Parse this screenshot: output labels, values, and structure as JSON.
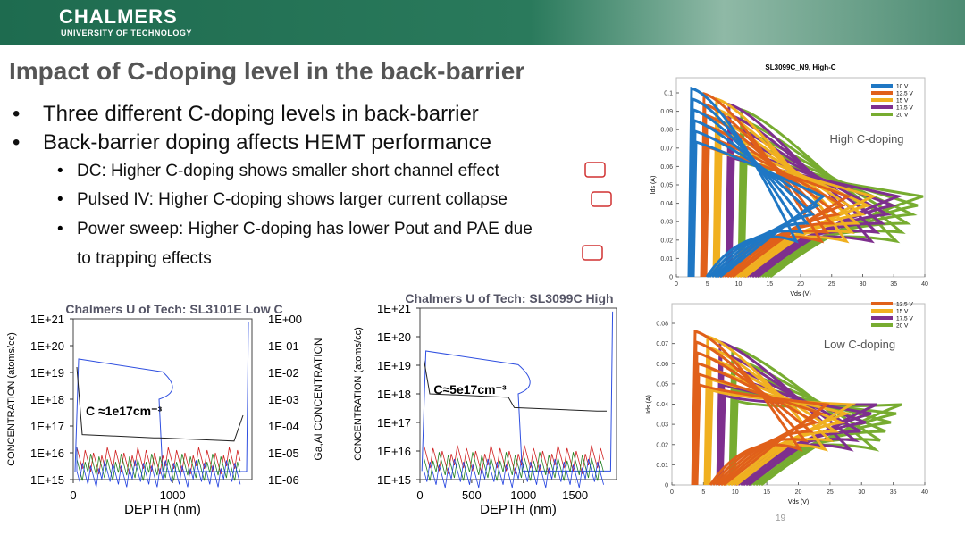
{
  "header": {
    "brand": "CHALMERS",
    "subbrand": "UNIVERSITY OF TECHNOLOGY"
  },
  "title": "Impact of C-doping level in the back-barrier",
  "bullets": [
    "Three different C-doping levels in back-barrier",
    "Back-barrier doping affects HEMT performance"
  ],
  "subbullets": [
    "DC: Higher C-doping shows smaller short channel effect",
    "Pulsed IV: Higher C-doping  shows larger current collapse",
    "Power sweep: Higher C-doping has lower Pout and PAE due",
    "to trapping effects"
  ],
  "iv_charts": [
    {
      "title": "SL3099C_N9, High-C",
      "note": "High C-doping",
      "xlabel": "Vds (V)",
      "ylabel": "Ids (A)",
      "xticks": [
        0,
        5,
        10,
        15,
        20,
        25,
        30,
        35,
        40
      ],
      "yticks": [
        0,
        0.01,
        0.02,
        0.03,
        0.04,
        0.05,
        0.06,
        0.07,
        0.08,
        0.09,
        0.1
      ],
      "legend": [
        "10 V",
        "12.5 V",
        "15 V",
        "17.5 V",
        "20 V"
      ],
      "colors": [
        "#1f77c4",
        "#e0601a",
        "#f0b020",
        "#7e2f8e",
        "#77ac30"
      ]
    },
    {
      "note": "Low C-doping",
      "xlabel": "Vds (V)",
      "ylabel": "Ids (A)",
      "xticks": [
        0,
        5,
        10,
        15,
        20,
        25,
        30,
        35,
        40
      ],
      "yticks": [
        0,
        0.01,
        0.02,
        0.03,
        0.04,
        0.05,
        0.06,
        0.07,
        0.08
      ],
      "legend": [
        "12.5 V",
        "15 V",
        "17.5 V",
        "20 V"
      ],
      "colors": [
        "#e0601a",
        "#f0b020",
        "#7e2f8e",
        "#77ac30"
      ]
    }
  ],
  "sims_charts": [
    {
      "title": "Chalmers U of Tech: SL3101E Low C",
      "ylabel": "CONCENTRATION (atoms/cc)",
      "y2label": "Ga,Al CONCENTRATION",
      "xlabel": "DEPTH (nm)",
      "yticks": [
        "1E+21",
        "1E+20",
        "1E+19",
        "1E+18",
        "1E+17",
        "1E+16",
        "1E+15"
      ],
      "y2ticks": [
        "1E+00",
        "1E-01",
        "1E-02",
        "1E-03",
        "1E-04",
        "1E-05",
        "1E-06"
      ],
      "xticks": [
        0,
        1000
      ],
      "note": "C ≈1e17cm⁻³"
    },
    {
      "title": "Chalmers U of Tech: SL3099C High",
      "ylabel": "CONCENTRATION (atoms/cc)",
      "xlabel": "DEPTH (nm)",
      "yticks": [
        "1E+21",
        "1E+20",
        "1E+19",
        "1E+18",
        "1E+17",
        "1E+16",
        "1E+15"
      ],
      "xticks": [
        0,
        500,
        1000,
        1500
      ],
      "note": "C≈5e17cm⁻³"
    }
  ],
  "page_number": "19"
}
